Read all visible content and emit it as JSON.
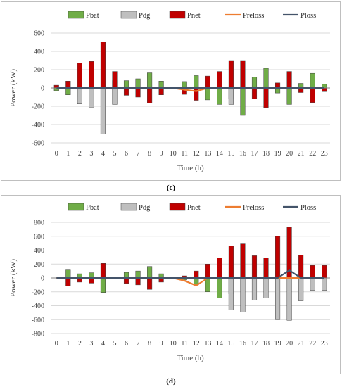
{
  "colors": {
    "Pbat": "#70ad47",
    "Pdg": "#bfbfbf",
    "Pnet": "#c00000",
    "Preloss": "#ed7d31",
    "Ploss": "#44546a"
  },
  "chart_data": [
    {
      "type": "bar",
      "caption": "(c)",
      "xlabel": "Time (h)",
      "ylabel": "Power (kW)",
      "ylim": [
        -600,
        600
      ],
      "yticks": [
        -600,
        -400,
        -200,
        0,
        200,
        400,
        600
      ],
      "grid": true,
      "legend": "top",
      "x": [
        0,
        1,
        2,
        3,
        4,
        5,
        6,
        7,
        8,
        9,
        10,
        11,
        12,
        13,
        14,
        15,
        16,
        17,
        18,
        19,
        20,
        21,
        22,
        23
      ],
      "series": [
        {
          "name": "Pbat",
          "kind": "bar",
          "values": [
            -30,
            -75,
            -100,
            -80,
            0,
            80,
            80,
            100,
            165,
            75,
            -10,
            70,
            135,
            -130,
            -180,
            -120,
            -300,
            120,
            215,
            -55,
            -180,
            50,
            160,
            40
          ]
        },
        {
          "name": "Pdg",
          "kind": "bar",
          "values": [
            0,
            0,
            -175,
            -210,
            -505,
            -180,
            0,
            0,
            0,
            0,
            0,
            0,
            0,
            0,
            0,
            -180,
            0,
            0,
            0,
            0,
            0,
            0,
            0,
            0
          ]
        },
        {
          "name": "Pnet",
          "kind": "bar",
          "values": [
            30,
            75,
            275,
            290,
            505,
            180,
            -80,
            -100,
            -165,
            -75,
            10,
            -70,
            -135,
            130,
            180,
            300,
            300,
            -120,
            -215,
            55,
            180,
            -50,
            -160,
            -40
          ]
        },
        {
          "name": "Preloss",
          "kind": "line",
          "values": [
            0,
            0,
            0,
            0,
            0,
            0,
            0,
            0,
            0,
            0,
            0,
            -20,
            -35,
            0,
            0,
            0,
            0,
            0,
            0,
            0,
            0,
            0,
            0,
            0
          ]
        },
        {
          "name": "Ploss",
          "kind": "line",
          "values": [
            0,
            0,
            0,
            0,
            0,
            0,
            0,
            0,
            0,
            0,
            0,
            0,
            0,
            0,
            0,
            0,
            0,
            0,
            0,
            0,
            0,
            0,
            0,
            0
          ]
        }
      ]
    },
    {
      "type": "bar",
      "caption": "(d)",
      "xlabel": "Time (h)",
      "ylabel": "Power (kW)",
      "ylim": [
        -800,
        800
      ],
      "yticks": [
        -800,
        -600,
        -400,
        -200,
        0,
        200,
        400,
        600,
        800
      ],
      "grid": true,
      "legend": "top",
      "x": [
        0,
        1,
        2,
        3,
        4,
        5,
        6,
        7,
        8,
        9,
        10,
        11,
        12,
        13,
        14,
        15,
        16,
        17,
        18,
        19,
        20,
        21,
        22,
        23
      ],
      "series": [
        {
          "name": "Pbat",
          "kind": "bar",
          "values": [
            0,
            115,
            60,
            75,
            -210,
            0,
            80,
            100,
            165,
            60,
            -15,
            -30,
            -100,
            -200,
            -290,
            -230,
            0,
            0,
            0,
            0,
            0,
            0,
            0,
            0
          ]
        },
        {
          "name": "Pdg",
          "kind": "bar",
          "values": [
            0,
            0,
            0,
            0,
            0,
            0,
            0,
            0,
            0,
            0,
            0,
            0,
            0,
            0,
            0,
            -460,
            -490,
            -320,
            -290,
            -600,
            -610,
            -330,
            -180,
            -180
          ]
        },
        {
          "name": "Pnet",
          "kind": "bar",
          "values": [
            0,
            -115,
            -60,
            -75,
            210,
            0,
            -80,
            -100,
            -165,
            -60,
            15,
            30,
            100,
            200,
            290,
            460,
            490,
            320,
            290,
            600,
            730,
            330,
            180,
            180
          ]
        },
        {
          "name": "Preloss",
          "kind": "line",
          "values": [
            0,
            0,
            0,
            0,
            0,
            0,
            0,
            0,
            0,
            0,
            0,
            -40,
            -110,
            0,
            0,
            0,
            0,
            0,
            0,
            0,
            0,
            0,
            0,
            0
          ]
        },
        {
          "name": "Ploss",
          "kind": "line",
          "values": [
            0,
            0,
            0,
            0,
            0,
            0,
            0,
            0,
            0,
            0,
            0,
            0,
            0,
            0,
            0,
            0,
            0,
            0,
            0,
            0,
            110,
            0,
            0,
            0
          ]
        }
      ]
    }
  ]
}
